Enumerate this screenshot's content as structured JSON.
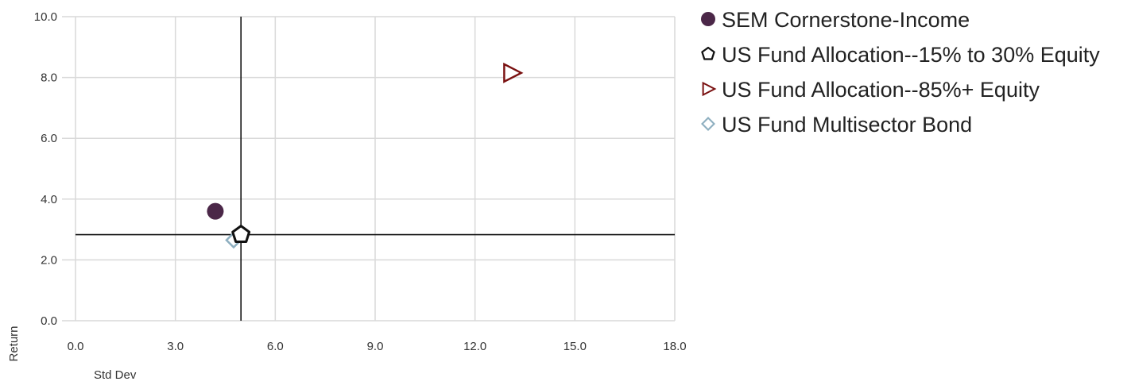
{
  "chart_data": {
    "type": "scatter",
    "xlabel": "Std Dev",
    "ylabel": "Return",
    "xlim": [
      0,
      18
    ],
    "ylim": [
      0,
      10
    ],
    "x_ticks": [
      "0.0",
      "3.0",
      "6.0",
      "9.0",
      "12.0",
      "15.0",
      "18.0"
    ],
    "y_ticks": [
      "0.0",
      "2.0",
      "4.0",
      "6.0",
      "8.0",
      "10.0"
    ],
    "grid": true,
    "legend_position": "right",
    "reference_lines": {
      "x": 4.97,
      "y": 2.83
    },
    "series": [
      {
        "name": "SEM Cornerstone-Income",
        "marker": "circle",
        "color": "#4b2748",
        "points": [
          {
            "x": 4.2,
            "y": 3.6
          }
        ]
      },
      {
        "name": "US Fund Allocation--15% to 30% Equity",
        "marker": "pentagon",
        "color": "#111111",
        "points": [
          {
            "x": 4.97,
            "y": 2.83
          }
        ]
      },
      {
        "name": "US Fund Allocation--85%+ Equity",
        "marker": "triangle-right",
        "color": "#7a1111",
        "points": [
          {
            "x": 13.1,
            "y": 8.15
          }
        ]
      },
      {
        "name": "US Fund Multisector Bond",
        "marker": "diamond",
        "color": "#8eafc0",
        "points": [
          {
            "x": 4.75,
            "y": 2.65
          }
        ]
      }
    ]
  }
}
